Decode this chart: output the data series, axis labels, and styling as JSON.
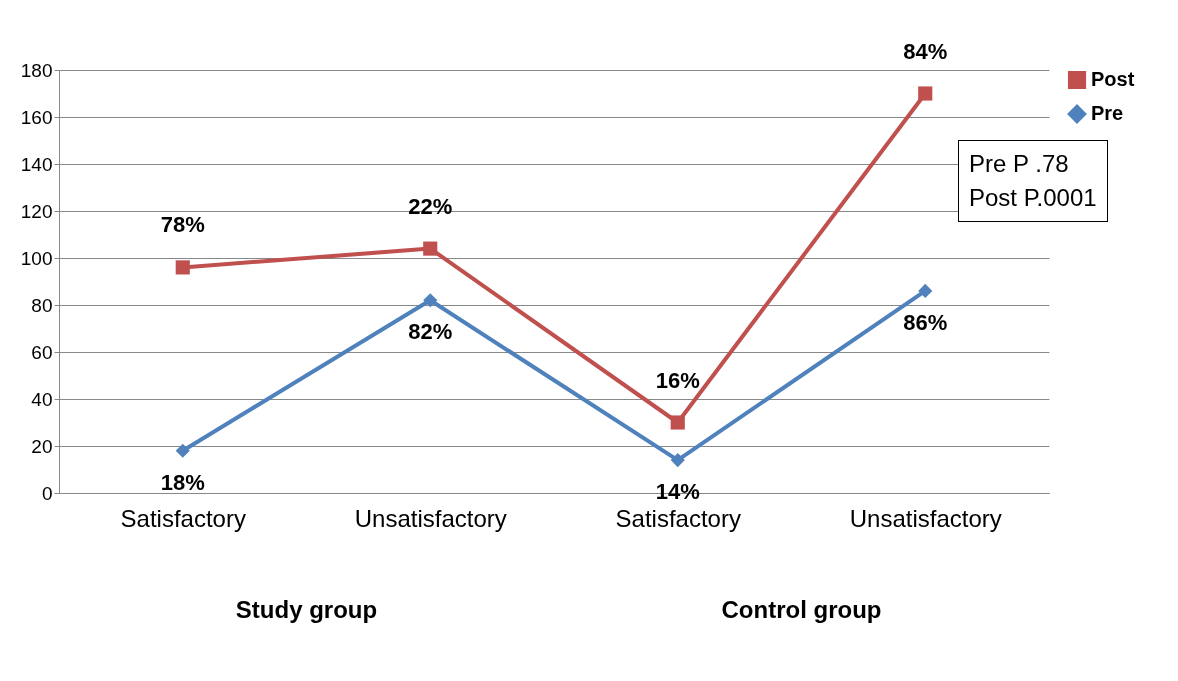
{
  "chart_data": {
    "type": "line",
    "categories": [
      "Satisfactory",
      "Unsatisfactory",
      "Satisfactory",
      "Unsatisfactory"
    ],
    "series": [
      {
        "name": "Post",
        "color": "#c0504d",
        "marker": "square",
        "values": [
          96,
          104,
          30,
          170
        ]
      },
      {
        "name": "Pre",
        "color": "#4f81bd",
        "marker": "diamond",
        "values": [
          18,
          82,
          14,
          86
        ]
      }
    ],
    "ylim": [
      0,
      180
    ],
    "yticks": [
      0,
      20,
      40,
      60,
      80,
      100,
      120,
      140,
      160,
      180
    ],
    "grid": "y",
    "legend": "right",
    "annotations": [
      "Study group",
      "Control group",
      "Pre P    .78",
      "Post P.0001",
      "78%",
      "22%",
      "16%",
      "84%",
      "18%",
      "82%",
      "14%",
      "86%"
    ]
  }
}
